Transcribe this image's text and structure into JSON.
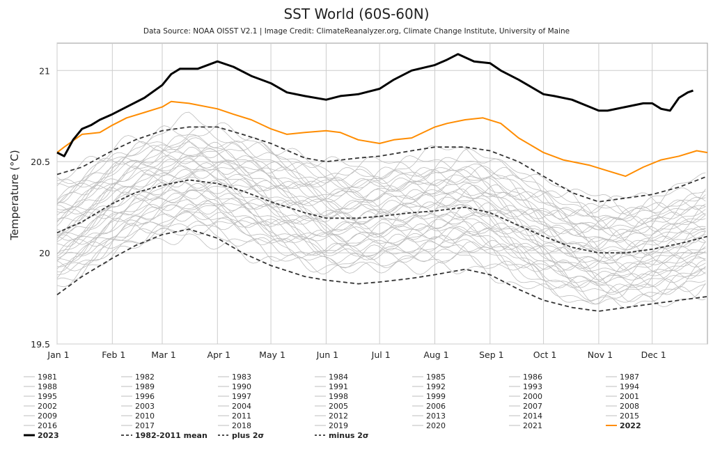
{
  "chart_data": {
    "type": "line",
    "title": "SST World (60S-60N)",
    "subtitle": "Data Source: NOAA OISST V2.1 | Image Credit: ClimateReanalyzer.org, Climate Change Institute, University of Maine",
    "xlabel": "",
    "ylabel": "Temperature (°C)",
    "x_domain": [
      1,
      366
    ],
    "ylim": [
      19.5,
      21.15
    ],
    "y_ticks": [
      19.5,
      20,
      20.5,
      21
    ],
    "x_ticks": [
      {
        "label": "Jan 1",
        "day": 1
      },
      {
        "label": "Feb 1",
        "day": 32
      },
      {
        "label": "Mar 1",
        "day": 60
      },
      {
        "label": "Apr 1",
        "day": 91
      },
      {
        "label": "May 1",
        "day": 121
      },
      {
        "label": "Jun 1",
        "day": 152
      },
      {
        "label": "Jul 1",
        "day": 182
      },
      {
        "label": "Aug 1",
        "day": 213
      },
      {
        "label": "Sep 1",
        "day": 244
      },
      {
        "label": "Oct 1",
        "day": 274
      },
      {
        "label": "Nov 1",
        "day": 305
      },
      {
        "label": "Dec 1",
        "day": 335
      }
    ],
    "grid": true,
    "legend_position": "bottom",
    "colors": {
      "past_year": "#bdbdbd",
      "year_2023": "#000000",
      "year_2022": "#ff8c00",
      "reference": "#333333"
    },
    "legend": {
      "years": [
        "1981",
        "1982",
        "1983",
        "1984",
        "1985",
        "1986",
        "1987",
        "1988",
        "1989",
        "1990",
        "1991",
        "1992",
        "1993",
        "1994",
        "1995",
        "1996",
        "1997",
        "1998",
        "1999",
        "2000",
        "2001",
        "2002",
        "2003",
        "2004",
        "2005",
        "2006",
        "2007",
        "2008",
        "2009",
        "2010",
        "2011",
        "2012",
        "2013",
        "2014",
        "2015",
        "2016",
        "2017",
        "2018",
        "2019",
        "2020",
        "2021",
        "2022"
      ],
      "special": [
        "2023",
        "1982-2011 mean",
        "plus 2σ",
        "minus 2σ"
      ]
    },
    "series": [
      {
        "name": "2023",
        "x": [
          1,
          5,
          10,
          15,
          20,
          25,
          32,
          40,
          50,
          60,
          65,
          70,
          80,
          91,
          100,
          110,
          121,
          130,
          140,
          152,
          160,
          170,
          182,
          190,
          200,
          213,
          220,
          226,
          235,
          244,
          250,
          260,
          274,
          280,
          290,
          300,
          305,
          310,
          320,
          330,
          335,
          340,
          345,
          350,
          355,
          358
        ],
        "values": [
          20.55,
          20.53,
          20.62,
          20.68,
          20.7,
          20.73,
          20.76,
          20.8,
          20.85,
          20.92,
          20.98,
          21.01,
          21.01,
          21.05,
          21.02,
          20.97,
          20.93,
          20.88,
          20.86,
          20.84,
          20.86,
          20.87,
          20.9,
          20.95,
          21.0,
          21.03,
          21.06,
          21.09,
          21.05,
          21.04,
          21.0,
          20.95,
          20.87,
          20.86,
          20.84,
          20.8,
          20.78,
          20.78,
          20.8,
          20.82,
          20.82,
          20.79,
          20.78,
          20.85,
          20.88,
          20.89
        ]
      },
      {
        "name": "2022",
        "x": [
          1,
          5,
          15,
          25,
          32,
          40,
          50,
          60,
          65,
          75,
          91,
          100,
          110,
          121,
          130,
          140,
          152,
          160,
          170,
          182,
          190,
          200,
          213,
          220,
          230,
          240,
          250,
          260,
          274,
          285,
          300,
          310,
          320,
          330,
          340,
          350,
          360,
          366
        ],
        "values": [
          20.55,
          20.58,
          20.65,
          20.66,
          20.7,
          20.74,
          20.77,
          20.8,
          20.83,
          20.82,
          20.79,
          20.76,
          20.73,
          20.68,
          20.65,
          20.66,
          20.67,
          20.66,
          20.62,
          20.6,
          20.62,
          20.63,
          20.69,
          20.71,
          20.73,
          20.74,
          20.71,
          20.63,
          20.55,
          20.51,
          20.48,
          20.45,
          20.42,
          20.47,
          20.51,
          20.53,
          20.56,
          20.55
        ]
      },
      {
        "name": "plus 2σ",
        "x": [
          1,
          15,
          32,
          45,
          60,
          75,
          91,
          105,
          121,
          140,
          152,
          170,
          182,
          200,
          213,
          230,
          244,
          260,
          274,
          290,
          305,
          320,
          335,
          350,
          366
        ],
        "values": [
          20.43,
          20.47,
          20.56,
          20.62,
          20.67,
          20.69,
          20.69,
          20.65,
          20.6,
          20.52,
          20.5,
          20.52,
          20.53,
          20.56,
          20.58,
          20.58,
          20.56,
          20.5,
          20.42,
          20.33,
          20.28,
          20.3,
          20.32,
          20.36,
          20.42
        ]
      },
      {
        "name": "1982-2011 mean",
        "x": [
          1,
          15,
          32,
          45,
          60,
          75,
          91,
          105,
          121,
          140,
          152,
          170,
          182,
          200,
          213,
          230,
          244,
          260,
          274,
          290,
          305,
          320,
          335,
          350,
          366
        ],
        "values": [
          20.11,
          20.17,
          20.27,
          20.33,
          20.37,
          20.4,
          20.38,
          20.34,
          20.28,
          20.22,
          20.19,
          20.19,
          20.2,
          20.22,
          20.23,
          20.25,
          20.22,
          20.15,
          20.09,
          20.03,
          20.0,
          20.0,
          20.02,
          20.05,
          20.09
        ]
      },
      {
        "name": "minus 2σ",
        "x": [
          1,
          15,
          32,
          45,
          60,
          75,
          91,
          105,
          121,
          140,
          152,
          170,
          182,
          200,
          213,
          230,
          244,
          260,
          274,
          290,
          305,
          320,
          335,
          350,
          366
        ],
        "values": [
          19.77,
          19.87,
          19.97,
          20.04,
          20.1,
          20.13,
          20.08,
          20.0,
          19.93,
          19.87,
          19.85,
          19.83,
          19.84,
          19.86,
          19.88,
          19.91,
          19.88,
          19.8,
          19.74,
          19.7,
          19.68,
          19.7,
          19.72,
          19.74,
          19.76
        ]
      }
    ]
  }
}
